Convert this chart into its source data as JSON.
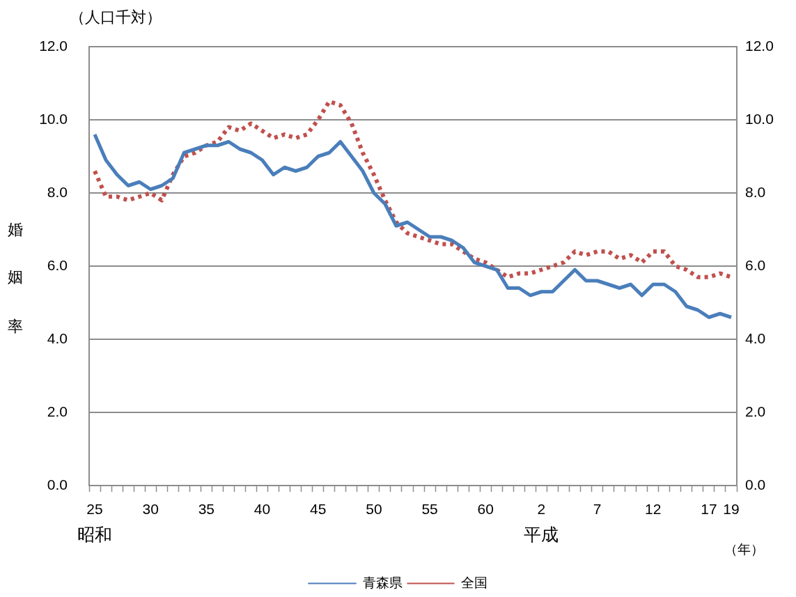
{
  "chart_data": {
    "type": "line",
    "ylabel": "婚姻率",
    "xlabel": "（年）",
    "annotations": [
      "（人口千対）",
      "昭和",
      "平成"
    ],
    "categories": [
      "25",
      null,
      null,
      null,
      null,
      "30",
      null,
      null,
      null,
      null,
      "35",
      null,
      null,
      null,
      null,
      "40",
      null,
      null,
      null,
      null,
      "45",
      null,
      null,
      null,
      null,
      "50",
      null,
      null,
      null,
      null,
      "55",
      null,
      null,
      null,
      null,
      "60",
      null,
      null,
      null,
      null,
      "2",
      null,
      null,
      null,
      null,
      "7",
      null,
      null,
      null,
      null,
      "12",
      null,
      null,
      null,
      null,
      "17",
      null,
      "19"
    ],
    "series": [
      {
        "name": "青森県",
        "color": "#4a7ebb",
        "line_style": "solid",
        "values": [
          9.6,
          8.9,
          8.5,
          8.2,
          8.3,
          8.1,
          8.2,
          8.4,
          9.1,
          9.2,
          9.3,
          9.3,
          9.4,
          9.2,
          9.1,
          8.9,
          8.5,
          8.7,
          8.6,
          8.7,
          9.0,
          9.1,
          9.4,
          9.0,
          8.6,
          8.0,
          7.7,
          7.1,
          7.2,
          7.0,
          6.8,
          6.8,
          6.7,
          6.5,
          6.1,
          6.0,
          5.9,
          5.4,
          5.4,
          5.2,
          5.3,
          5.3,
          5.6,
          5.9,
          5.6,
          5.6,
          5.5,
          5.4,
          5.5,
          5.2,
          5.5,
          5.5,
          5.3,
          4.9,
          4.8,
          4.6,
          4.7,
          4.6
        ]
      },
      {
        "name": "全国",
        "color": "#c0504d",
        "line_style": "dotted",
        "values": [
          8.6,
          7.9,
          7.9,
          7.8,
          7.9,
          8.0,
          7.8,
          8.5,
          9.0,
          9.1,
          9.3,
          9.4,
          9.8,
          9.7,
          9.9,
          9.7,
          9.5,
          9.6,
          9.5,
          9.6,
          10.0,
          10.5,
          10.4,
          9.9,
          9.1,
          8.5,
          7.8,
          7.2,
          6.9,
          6.8,
          6.7,
          6.6,
          6.6,
          6.4,
          6.2,
          6.1,
          5.9,
          5.7,
          5.8,
          5.8,
          5.9,
          6.0,
          6.1,
          6.4,
          6.3,
          6.4,
          6.4,
          6.2,
          6.3,
          6.1,
          6.4,
          6.4,
          6.0,
          5.9,
          5.7,
          5.7,
          5.8,
          5.7
        ]
      }
    ],
    "ylim": [
      0,
      12
    ],
    "yticks": [
      {
        "value": 0,
        "label": "0.0"
      },
      {
        "value": 2,
        "label": "2.0"
      },
      {
        "value": 4,
        "label": "4.0"
      },
      {
        "value": 6,
        "label": "6.0"
      },
      {
        "value": 8,
        "label": "8.0"
      },
      {
        "value": 10,
        "label": "10.0"
      },
      {
        "value": 12,
        "label": "12.0"
      }
    ],
    "y2lim": [
      0,
      12
    ],
    "y2ticks": [
      {
        "value": 0,
        "label": "0.0"
      },
      {
        "value": 2,
        "label": "2.0"
      },
      {
        "value": 4,
        "label": "4.0"
      },
      {
        "value": 6,
        "label": "6.0"
      },
      {
        "value": 8,
        "label": "8.0"
      },
      {
        "value": 10,
        "label": "10.0"
      },
      {
        "value": 12,
        "label": "12.0"
      }
    ],
    "grid": "y",
    "legend": "bottom",
    "marker": "none"
  }
}
